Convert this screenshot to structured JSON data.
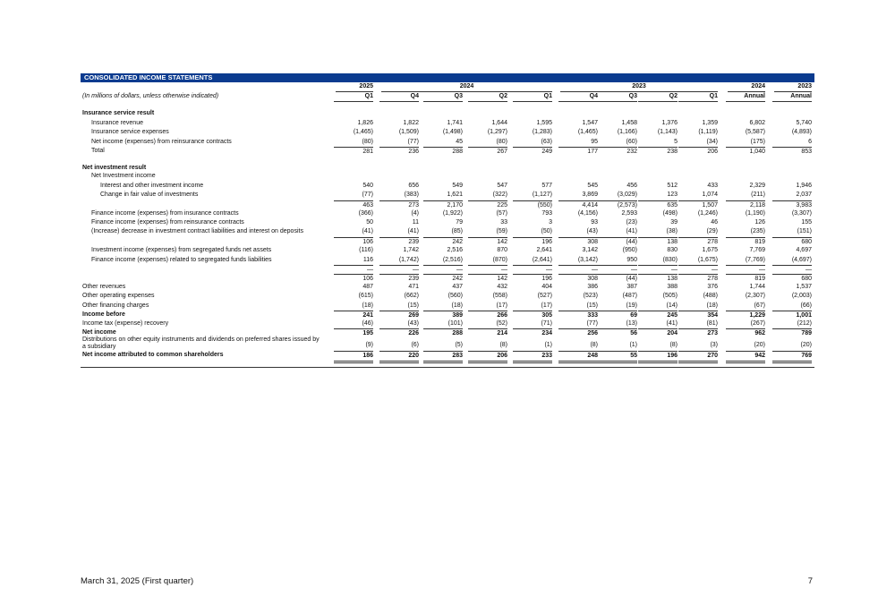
{
  "table": {
    "title": "CONSOLIDATED INCOME STATEMENTS",
    "column_groups": [
      "2025",
      "2024",
      "2023",
      "2024",
      "2023"
    ],
    "note": "(In millions of dollars, unless otherwise indicated)",
    "columns": [
      "Q1",
      "Q4",
      "Q3",
      "Q2",
      "Q1",
      "Q4",
      "Q3",
      "Q2",
      "Q1",
      "Annual",
      "Annual"
    ],
    "rows": [
      {
        "label": "Insurance service result",
        "values": []
      },
      {
        "label": "Insurance revenue",
        "values": [
          "1,826",
          "1,822",
          "1,741",
          "1,644",
          "1,595",
          "1,547",
          "1,458",
          "1,376",
          "1,359",
          "6,802",
          "5,740"
        ]
      },
      {
        "label": "Insurance service expenses",
        "values": [
          "(1,465)",
          "(1,509)",
          "(1,498)",
          "(1,297)",
          "(1,283)",
          "(1,465)",
          "(1,166)",
          "(1,143)",
          "(1,119)",
          "(5,587)",
          "(4,893)"
        ]
      },
      {
        "label": "Net income (expenses) from reinsurance contracts",
        "values": [
          "(80)",
          "(77)",
          "45",
          "(80)",
          "(63)",
          "95",
          "(60)",
          "5",
          "(34)",
          "(175)",
          "6"
        ]
      },
      {
        "label": "Total",
        "values": [
          "281",
          "236",
          "288",
          "267",
          "249",
          "177",
          "232",
          "238",
          "206",
          "1,040",
          "853"
        ]
      },
      {
        "label": "Net investment result",
        "values": []
      },
      {
        "label": "Net Investment income",
        "values": []
      },
      {
        "label": "Interest and other investment income",
        "values": [
          "540",
          "656",
          "549",
          "547",
          "577",
          "545",
          "456",
          "512",
          "433",
          "2,329",
          "1,946"
        ]
      },
      {
        "label": "Change in fair value of investments",
        "values": [
          "(77)",
          "(383)",
          "1,621",
          "(322)",
          "(1,127)",
          "3,869",
          "(3,029)",
          "123",
          "1,074",
          "(211)",
          "2,037"
        ]
      },
      {
        "label": null,
        "values": [
          "463",
          "273",
          "2,170",
          "225",
          "(550)",
          "4,414",
          "(2,573)",
          "635",
          "1,507",
          "2,118",
          "3,983"
        ]
      },
      {
        "label": "Finance income (expenses) from insurance contracts",
        "values": [
          "(366)",
          "(4)",
          "(1,922)",
          "(57)",
          "793",
          "(4,156)",
          "2,593",
          "(498)",
          "(1,246)",
          "(1,190)",
          "(3,307)"
        ]
      },
      {
        "label": "Finance income (expenses) from reinsurance contracts",
        "values": [
          "50",
          "11",
          "79",
          "33",
          "3",
          "93",
          "(23)",
          "39",
          "46",
          "126",
          "155"
        ]
      },
      {
        "label": "(Increase) decrease in investment contract liabilities and interest on deposits",
        "values": [
          "(41)",
          "(41)",
          "(85)",
          "(59)",
          "(50)",
          "(43)",
          "(41)",
          "(38)",
          "(29)",
          "(235)",
          "(151)"
        ]
      },
      {
        "label": null,
        "values": [
          "106",
          "239",
          "242",
          "142",
          "196",
          "308",
          "(44)",
          "138",
          "278",
          "819",
          "680"
        ]
      },
      {
        "label": "Investment income (expenses) from segregated funds net assets",
        "values": [
          "(116)",
          "1,742",
          "2,516",
          "870",
          "2,641",
          "3,142",
          "(950)",
          "830",
          "1,675",
          "7,769",
          "4,697"
        ]
      },
      {
        "label": "Finance income (expenses) related to segregated funds liabilities",
        "values": [
          "116",
          "(1,742)",
          "(2,516)",
          "(870)",
          "(2,641)",
          "(3,142)",
          "950",
          "(830)",
          "(1,675)",
          "(7,769)",
          "(4,697)"
        ]
      },
      {
        "label": null,
        "values": [
          "—",
          "—",
          "—",
          "—",
          "—",
          "—",
          "—",
          "—",
          "—",
          "—",
          "—"
        ]
      },
      {
        "label": null,
        "values": [
          "106",
          "239",
          "242",
          "142",
          "196",
          "308",
          "(44)",
          "138",
          "278",
          "819",
          "680"
        ]
      },
      {
        "label": "Other revenues",
        "values": [
          "487",
          "471",
          "437",
          "432",
          "404",
          "386",
          "387",
          "388",
          "376",
          "1,744",
          "1,537"
        ]
      },
      {
        "label": "Other operating expenses",
        "values": [
          "(615)",
          "(662)",
          "(560)",
          "(558)",
          "(527)",
          "(523)",
          "(487)",
          "(505)",
          "(488)",
          "(2,307)",
          "(2,003)"
        ]
      },
      {
        "label": "Other financing charges",
        "values": [
          "(18)",
          "(15)",
          "(18)",
          "(17)",
          "(17)",
          "(15)",
          "(19)",
          "(14)",
          "(18)",
          "(67)",
          "(66)"
        ]
      },
      {
        "label": "Income before",
        "values": [
          "241",
          "269",
          "389",
          "266",
          "305",
          "333",
          "69",
          "245",
          "354",
          "1,229",
          "1,001"
        ]
      },
      {
        "label": "Income tax (expense) recovery",
        "values": [
          "(46)",
          "(43)",
          "(101)",
          "(52)",
          "(71)",
          "(77)",
          "(13)",
          "(41)",
          "(81)",
          "(267)",
          "(212)"
        ]
      },
      {
        "label": "Net income",
        "values": [
          "195",
          "226",
          "288",
          "214",
          "234",
          "256",
          "56",
          "204",
          "273",
          "962",
          "789"
        ]
      },
      {
        "label": "Distributions on other equity instruments and dividends on preferred shares issued by a subsidiary",
        "values": [
          "(9)",
          "(6)",
          "(5)",
          "(8)",
          "(1)",
          "(8)",
          "(1)",
          "(8)",
          "(3)",
          "(20)",
          "(20)"
        ]
      },
      {
        "label": "Net income attributed to common shareholders",
        "values": [
          "186",
          "220",
          "283",
          "206",
          "233",
          "248",
          "55",
          "196",
          "270",
          "942",
          "769"
        ]
      }
    ]
  },
  "footer": {
    "date": "March 31, 2025 (First quarter)",
    "page": "7"
  }
}
